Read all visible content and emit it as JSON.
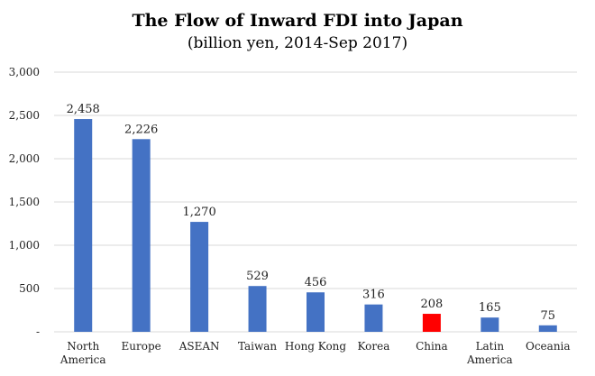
{
  "chart_data": {
    "type": "bar",
    "title": "The Flow of Inward FDI into Japan",
    "subtitle": "(billion yen, 2014-Sep 2017)",
    "xlabel": "",
    "ylabel": "",
    "ylim": [
      0,
      3000
    ],
    "yticks": [
      {
        "value": 0,
        "label": "-"
      },
      {
        "value": 500,
        "label": "500"
      },
      {
        "value": 1000,
        "label": "1,000"
      },
      {
        "value": 1500,
        "label": "1,500"
      },
      {
        "value": 2000,
        "label": "2,000"
      },
      {
        "value": 2500,
        "label": "2,500"
      },
      {
        "value": 3000,
        "label": "3,000"
      }
    ],
    "grid": true,
    "legend": "none",
    "categories": [
      [
        "North",
        "America"
      ],
      [
        "Europe"
      ],
      [
        "ASEAN"
      ],
      [
        "Taiwan"
      ],
      [
        "Hong Kong"
      ],
      [
        "Korea"
      ],
      [
        "China"
      ],
      [
        "Latin",
        "America"
      ],
      [
        "Oceania"
      ]
    ],
    "values": [
      2458,
      2226,
      1270,
      529,
      456,
      316,
      208,
      165,
      75
    ],
    "data_labels": [
      "2,458",
      "2,226",
      "1,270",
      "529",
      "456",
      "316",
      "208",
      "165",
      "75"
    ],
    "colors": {
      "bar": "#4472C4",
      "highlight": "#FF0000",
      "highlight_index": 6,
      "grid": "#D9D9D9"
    }
  }
}
